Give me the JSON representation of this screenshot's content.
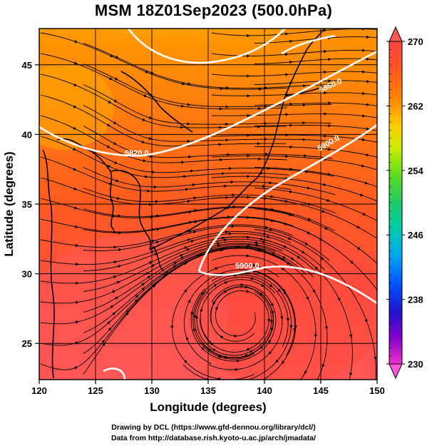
{
  "title": "MSM 18Z01Sep2023 (500.0hPa)",
  "axes": {
    "xlabel": "Longitude (degrees)",
    "ylabel": "Latitude  (degrees)",
    "xticks": [
      "120",
      "125",
      "130",
      "135",
      "140",
      "145",
      "150"
    ],
    "yticks": [
      "25",
      "30",
      "35",
      "40",
      "45"
    ]
  },
  "colorbar": {
    "labels": [
      "270",
      "262",
      "254",
      "246",
      "238",
      "230"
    ],
    "colors": [
      "#ff66cc",
      "#aa00cc",
      "#3300cc",
      "#0066ff",
      "#00ccff",
      "#00ccaa",
      "#33cc33",
      "#99dd22",
      "#ffee00",
      "#ffaa00",
      "#ff6600",
      "#ff3333",
      "#ff5555"
    ]
  },
  "contour_labels": [
    "5900.0",
    "5900.0",
    "5900.0",
    "5820.0",
    "5860.0"
  ],
  "credits": {
    "line1": "Drawing by DCL (https://www.gfd-dennou.org/library/dcl/)",
    "line2": "Data from http://database.rish.kyoto-u.ac.jp/arch/jmadata/"
  },
  "chart_data": {
    "type": "heatmap",
    "title": "MSM 18Z01Sep2023 (500.0hPa)",
    "xlabel": "Longitude (degrees)",
    "ylabel": "Latitude  (degrees)",
    "xlim": [
      120,
      150
    ],
    "ylim": [
      22.4,
      47.6
    ],
    "colorbar_range": [
      230,
      270
    ],
    "contour_interval_label": [
      "5820.0",
      "5860.0",
      "5900.0"
    ],
    "grid": true
  }
}
